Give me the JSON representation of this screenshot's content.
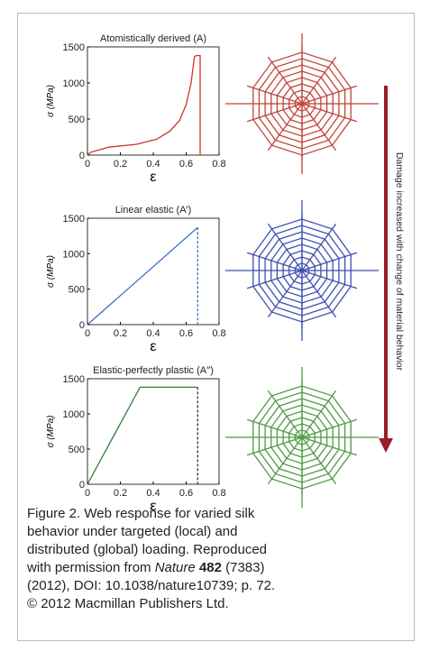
{
  "chart_data": [
    {
      "type": "line",
      "title": "Atomistically derived (A)",
      "xlabel": "ε",
      "ylabel": "σ (MPa)",
      "xlim": [
        0,
        0.8
      ],
      "ylim": [
        0,
        1500
      ],
      "xticks": [
        0,
        0.2,
        0.4,
        0.6,
        0.8
      ],
      "yticks": [
        0,
        500,
        1000,
        1500
      ],
      "series": [
        {
          "color": "#d0342c",
          "dashed": false,
          "x": [
            0,
            0.02,
            0.13,
            0.3,
            0.42,
            0.5,
            0.56,
            0.6,
            0.63,
            0.65,
            0.66,
            0.685,
            0.685
          ],
          "values": [
            0,
            40,
            110,
            150,
            220,
            330,
            480,
            700,
            1000,
            1360,
            1380,
            1380,
            0
          ]
        }
      ]
    },
    {
      "type": "line",
      "title": "Linear elastic (A′)",
      "xlabel": "ε",
      "ylabel": "σ (MPa)",
      "xlim": [
        0,
        0.8
      ],
      "ylim": [
        0,
        1500
      ],
      "xticks": [
        0,
        0.2,
        0.4,
        0.6,
        0.8
      ],
      "yticks": [
        0,
        500,
        1000,
        1500
      ],
      "series": [
        {
          "color": "#3a6fc4",
          "dashed": false,
          "x": [
            0,
            0.67
          ],
          "values": [
            0,
            1370
          ]
        },
        {
          "color": "#3a6fc4",
          "dashed": true,
          "x": [
            0.67,
            0.67
          ],
          "values": [
            1370,
            0
          ]
        }
      ]
    },
    {
      "type": "line",
      "title": "Elastic-perfectly plastic (A′′)",
      "xlabel": "ε",
      "ylabel": "σ (MPa)",
      "xlim": [
        0,
        0.8
      ],
      "ylim": [
        0,
        1500
      ],
      "xticks": [
        0,
        0.2,
        0.4,
        0.6,
        0.8
      ],
      "yticks": [
        0,
        500,
        1000,
        1500
      ],
      "series": [
        {
          "color": "#2e7d32",
          "dashed": false,
          "x": [
            0,
            0.32,
            0.67
          ],
          "values": [
            0,
            1380,
            1380
          ]
        },
        {
          "color": "#333333",
          "dashed": true,
          "x": [
            0.67,
            0.67
          ],
          "values": [
            1380,
            0
          ]
        }
      ]
    }
  ],
  "arrow_label": "Damage increased with change of material behavior",
  "caption": {
    "lines": [
      "Figure 2. Web response for varied silk",
      "behavior under targeted (local) and",
      "distributed (global) loading. Reproduced",
      [
        "with permission from ",
        "Nature",
        " 482",
        " (7383)"
      ],
      "(2012), DOI: 10.1038/nature10739; p. 72.",
      "© 2012 Macmillan Publishers Ltd."
    ]
  }
}
